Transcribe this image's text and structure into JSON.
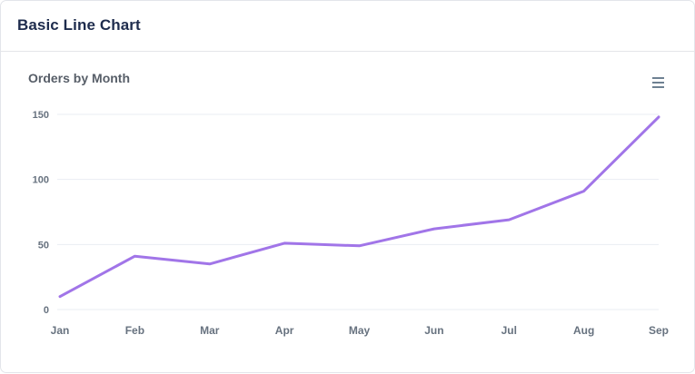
{
  "header": {
    "title": "Basic Line Chart"
  },
  "chart": {
    "title": "Orders by Month",
    "toolbar": {
      "menu_icon": "menu-icon"
    }
  },
  "chart_data": {
    "type": "line",
    "title": "Orders by Month",
    "categories": [
      "Jan",
      "Feb",
      "Mar",
      "Apr",
      "May",
      "Jun",
      "Jul",
      "Aug",
      "Sep"
    ],
    "values": [
      10,
      41,
      35,
      51,
      49,
      62,
      69,
      91,
      148
    ],
    "xlabel": "",
    "ylabel": "",
    "ylim": [
      0,
      150
    ],
    "yticks": [
      0,
      50,
      100,
      150
    ],
    "grid": "horizontal",
    "legend": "none",
    "curve": "straight",
    "line_color": "#a175e8"
  },
  "colors": {
    "line": "#a175e8",
    "header_title": "#1e2c4d",
    "chart_title": "#575e68",
    "axis_label": "#67727f",
    "gridline": "#e9edf3",
    "card_border": "#e3e5ea",
    "toolbar_icon": "#6e8192"
  }
}
